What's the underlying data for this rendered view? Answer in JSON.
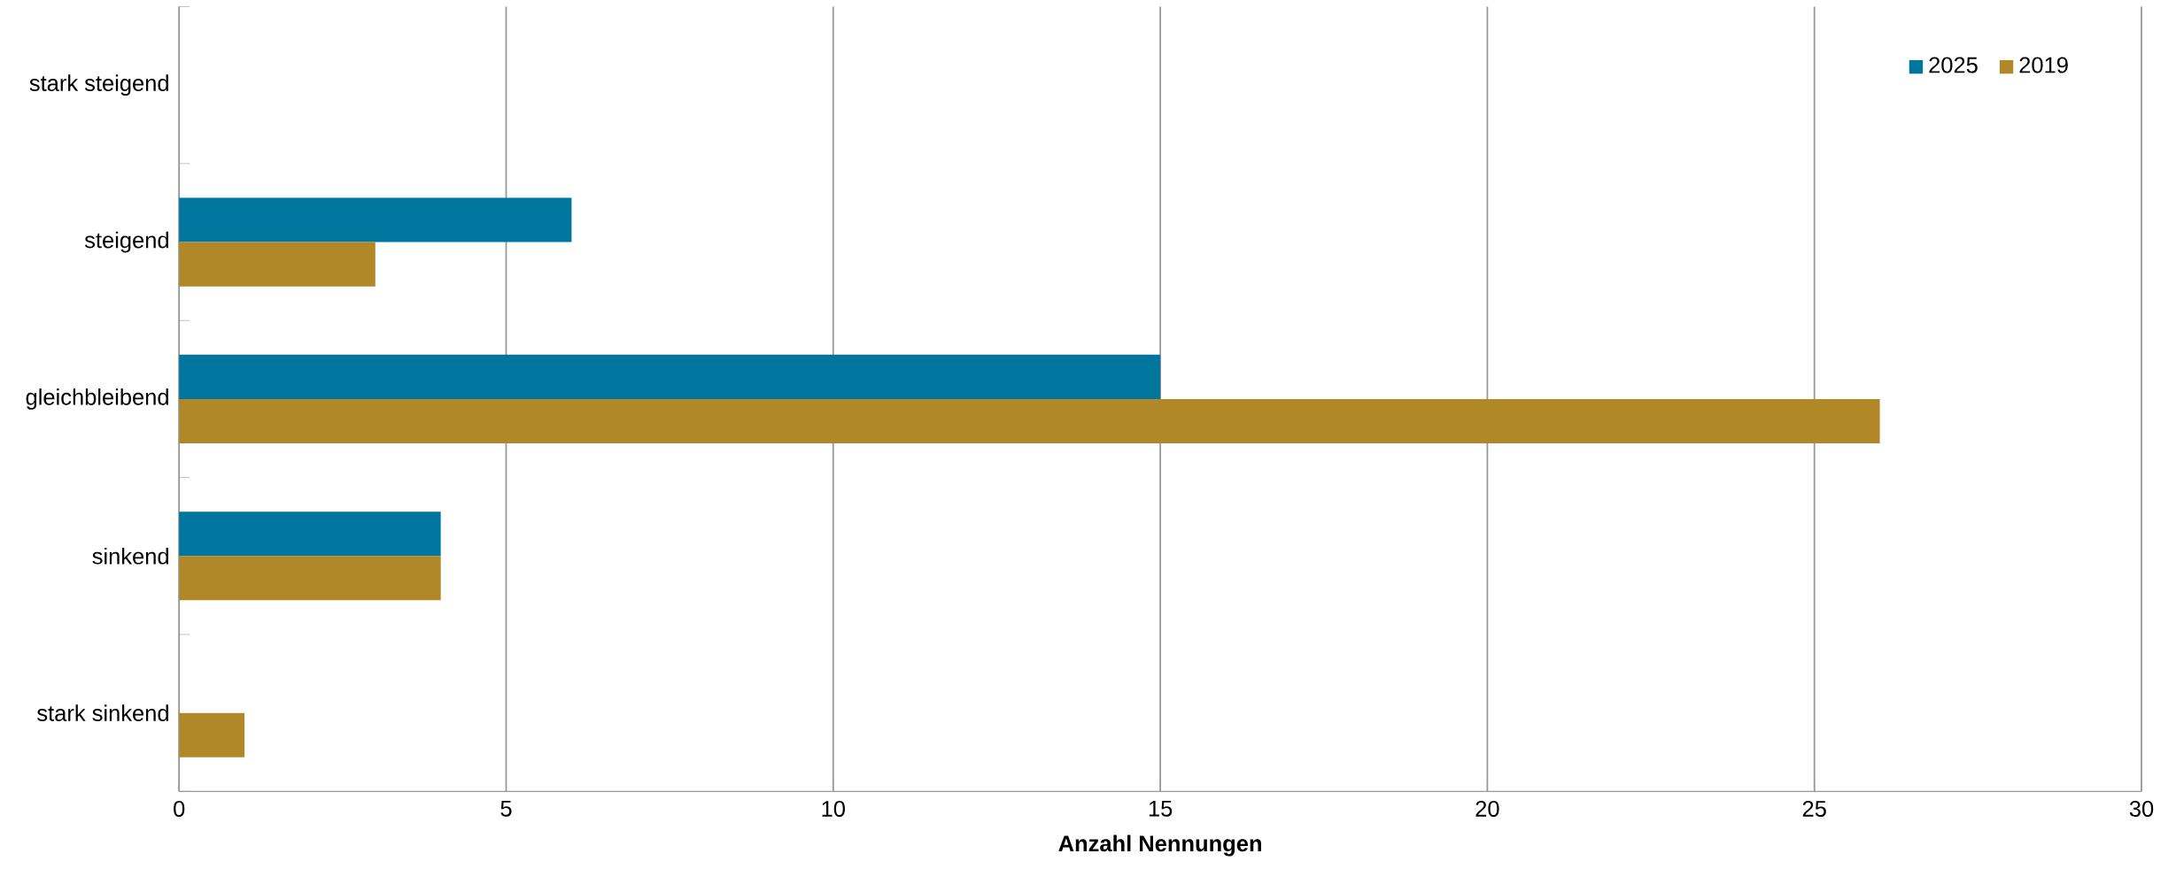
{
  "chart_data": {
    "type": "bar",
    "orientation": "horizontal",
    "categories": [
      "stark steigend",
      "steigend",
      "gleichbleibend",
      "sinkend",
      "stark sinkend"
    ],
    "series": [
      {
        "name": "2025",
        "color": "#00759e",
        "values": [
          0,
          6,
          15,
          4,
          0
        ]
      },
      {
        "name": "2019",
        "color": "#b08828",
        "values": [
          0,
          3,
          26,
          4,
          1
        ]
      }
    ],
    "xlabel": "Anzahl Nennungen",
    "xlim": [
      0,
      30
    ],
    "xticks": [
      0,
      5,
      10,
      15,
      20,
      25,
      30
    ],
    "grid": "x",
    "legend": "top right"
  }
}
